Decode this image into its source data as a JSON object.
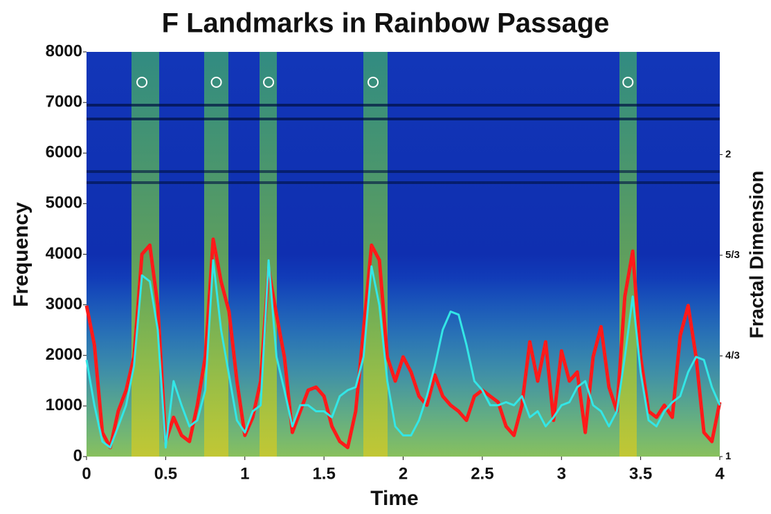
{
  "chart_data": {
    "type": "line",
    "title": "F Landmarks in Rainbow Passage",
    "x_label": "Time",
    "y_label": "Frequency",
    "y2_label": "Fractal Dimension",
    "xlim": [
      0,
      4
    ],
    "xticks": [
      0,
      0.5,
      1,
      1.5,
      2,
      2.5,
      3,
      3.5,
      4
    ],
    "ylim": [
      0,
      8000
    ],
    "yticks": [
      0,
      1000,
      2000,
      3000,
      4000,
      5000,
      6000,
      7000,
      8000
    ],
    "y2lim": [
      1,
      2.34
    ],
    "y2ticks": [
      1,
      {
        "value": 1.3333,
        "label": "4/3"
      },
      {
        "value": 1.6667,
        "label": "5/3"
      },
      2
    ],
    "x": [
      0,
      0.05,
      0.1,
      0.15,
      0.2,
      0.25,
      0.3,
      0.35,
      0.4,
      0.45,
      0.5,
      0.55,
      0.6,
      0.65,
      0.7,
      0.75,
      0.8,
      0.85,
      0.9,
      0.95,
      1,
      1.05,
      1.1,
      1.15,
      1.2,
      1.25,
      1.3,
      1.35,
      1.4,
      1.45,
      1.5,
      1.55,
      1.6,
      1.65,
      1.7,
      1.75,
      1.8,
      1.85,
      1.9,
      1.95,
      2,
      2.05,
      2.1,
      2.15,
      2.2,
      2.25,
      2.3,
      2.35,
      2.4,
      2.45,
      2.5,
      2.55,
      2.6,
      2.65,
      2.7,
      2.75,
      2.8,
      2.85,
      2.9,
      2.95,
      3,
      3.05,
      3.1,
      3.15,
      3.2,
      3.25,
      3.3,
      3.35,
      3.4,
      3.45,
      3.5,
      3.55,
      3.6,
      3.65,
      3.7,
      3.75,
      3.8,
      3.85,
      3.9,
      3.95,
      4
    ],
    "series": [
      {
        "color": "#ff1a1a",
        "axis": "y2",
        "values": [
          1.5,
          1.37,
          1.08,
          1.03,
          1.15,
          1.22,
          1.33,
          1.67,
          1.7,
          1.5,
          1.05,
          1.13,
          1.07,
          1.05,
          1.17,
          1.33,
          1.72,
          1.58,
          1.48,
          1.25,
          1.07,
          1.13,
          1.25,
          1.62,
          1.47,
          1.33,
          1.08,
          1.15,
          1.22,
          1.23,
          1.2,
          1.1,
          1.05,
          1.03,
          1.15,
          1.42,
          1.7,
          1.65,
          1.33,
          1.25,
          1.33,
          1.28,
          1.2,
          1.17,
          1.27,
          1.2,
          1.17,
          1.15,
          1.12,
          1.2,
          1.22,
          1.2,
          1.18,
          1.1,
          1.07,
          1.17,
          1.38,
          1.25,
          1.38,
          1.12,
          1.35,
          1.25,
          1.28,
          1.08,
          1.33,
          1.43,
          1.23,
          1.15,
          1.53,
          1.68,
          1.33,
          1.15,
          1.13,
          1.17,
          1.13,
          1.4,
          1.5,
          1.33,
          1.08,
          1.05,
          1.18
        ]
      },
      {
        "color": "#33e6e6",
        "axis": "y2",
        "values": [
          1.32,
          1.17,
          1.05,
          1.03,
          1.1,
          1.17,
          1.3,
          1.6,
          1.58,
          1.42,
          1.03,
          1.25,
          1.17,
          1.1,
          1.12,
          1.22,
          1.65,
          1.42,
          1.27,
          1.12,
          1.08,
          1.15,
          1.17,
          1.65,
          1.33,
          1.22,
          1.1,
          1.17,
          1.17,
          1.15,
          1.15,
          1.13,
          1.2,
          1.22,
          1.23,
          1.33,
          1.63,
          1.5,
          1.25,
          1.1,
          1.07,
          1.07,
          1.12,
          1.2,
          1.3,
          1.42,
          1.48,
          1.47,
          1.37,
          1.25,
          1.22,
          1.17,
          1.17,
          1.18,
          1.17,
          1.2,
          1.13,
          1.15,
          1.1,
          1.13,
          1.17,
          1.18,
          1.23,
          1.25,
          1.17,
          1.15,
          1.1,
          1.15,
          1.33,
          1.53,
          1.28,
          1.12,
          1.1,
          1.15,
          1.18,
          1.2,
          1.28,
          1.33,
          1.32,
          1.23,
          1.17
        ]
      }
    ],
    "landmarks": {
      "color": "#ffffff",
      "x": [
        0.35,
        0.82,
        1.15,
        1.81,
        3.42
      ],
      "y": [
        7400,
        7400,
        7400,
        7400,
        7400
      ]
    }
  }
}
